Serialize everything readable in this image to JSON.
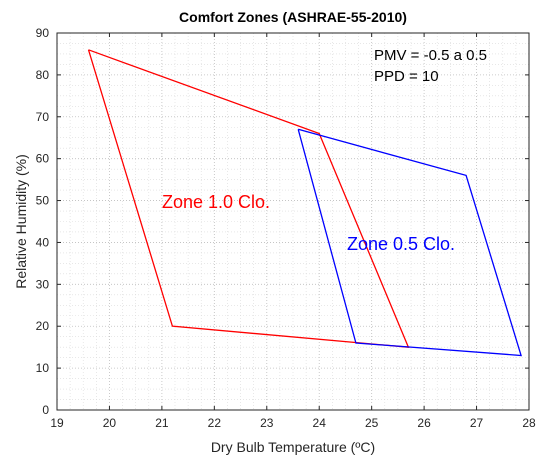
{
  "chart_data": {
    "type": "line",
    "title": "Comfort Zones (ASHRAE-55-2010)",
    "xlabel": "Dry Bulb Temperature (ºC)",
    "ylabel": "Relative Humidity (%)",
    "xlim": [
      19,
      28
    ],
    "ylim": [
      0,
      90
    ],
    "xticks": [
      19,
      20,
      21,
      22,
      23,
      24,
      25,
      26,
      27,
      28
    ],
    "yticks": [
      0,
      10,
      20,
      30,
      40,
      50,
      60,
      70,
      80,
      90
    ],
    "grid": "dotted, major and minor",
    "annotations": [
      {
        "text": "PMV = -0.5 a 0.5"
      },
      {
        "text": "PPD = 10"
      }
    ],
    "series": [
      {
        "name": "Zone 1.0 Clo.",
        "color": "#ff0000",
        "points": [
          {
            "x": 19.6,
            "y": 86
          },
          {
            "x": 21.2,
            "y": 20
          },
          {
            "x": 25.7,
            "y": 15
          },
          {
            "x": 24.0,
            "y": 66
          },
          {
            "x": 19.6,
            "y": 86
          }
        ]
      },
      {
        "name": "Zone 0.5 Clo.",
        "color": "#0000ff",
        "points": [
          {
            "x": 23.6,
            "y": 67
          },
          {
            "x": 24.7,
            "y": 16
          },
          {
            "x": 27.85,
            "y": 13
          },
          {
            "x": 26.8,
            "y": 56
          },
          {
            "x": 23.6,
            "y": 67
          }
        ]
      }
    ]
  }
}
